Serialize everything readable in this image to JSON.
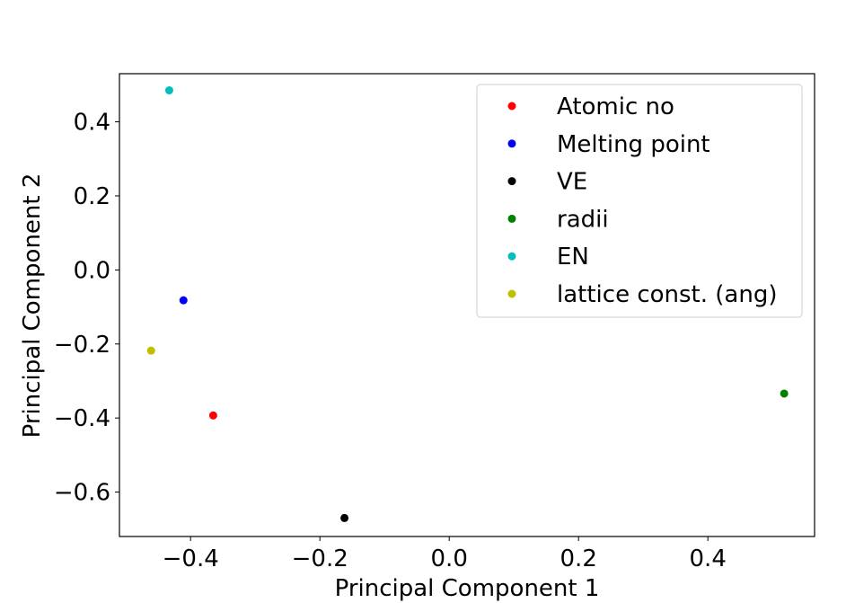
{
  "chart_data": {
    "type": "scatter",
    "title": "",
    "xlabel": "Principal Component 1",
    "ylabel": "Principal Component 2",
    "xlim": [
      -0.51,
      0.565
    ],
    "ylim": [
      -0.72,
      0.53
    ],
    "xticks": [
      -0.4,
      -0.2,
      0.0,
      0.2,
      0.4
    ],
    "xtick_labels": [
      "−0.4",
      "−0.2",
      "0.0",
      "0.2",
      "0.4"
    ],
    "yticks": [
      -0.6,
      -0.4,
      -0.2,
      0.0,
      0.2,
      0.4
    ],
    "ytick_labels": [
      "−0.6",
      "−0.4",
      "−0.2",
      "0.0",
      "0.2",
      "0.4"
    ],
    "grid": false,
    "legend_position": "top-right",
    "series": [
      {
        "name": "Atomic no",
        "color": "#ff0000",
        "x": [
          -0.365
        ],
        "y": [
          -0.393
        ]
      },
      {
        "name": "Melting point",
        "color": "#0000ff",
        "x": [
          -0.411
        ],
        "y": [
          -0.082
        ]
      },
      {
        "name": "VE",
        "color": "#000000",
        "x": [
          -0.162
        ],
        "y": [
          -0.67
        ]
      },
      {
        "name": "radii",
        "color": "#008000",
        "x": [
          0.518
        ],
        "y": [
          -0.334
        ]
      },
      {
        "name": "EN",
        "color": "#00bfbf",
        "x": [
          -0.433
        ],
        "y": [
          0.485
        ]
      },
      {
        "name": "lattice const. (ang)",
        "color": "#bfbf00",
        "x": [
          -0.461
        ],
        "y": [
          -0.218
        ]
      }
    ]
  }
}
